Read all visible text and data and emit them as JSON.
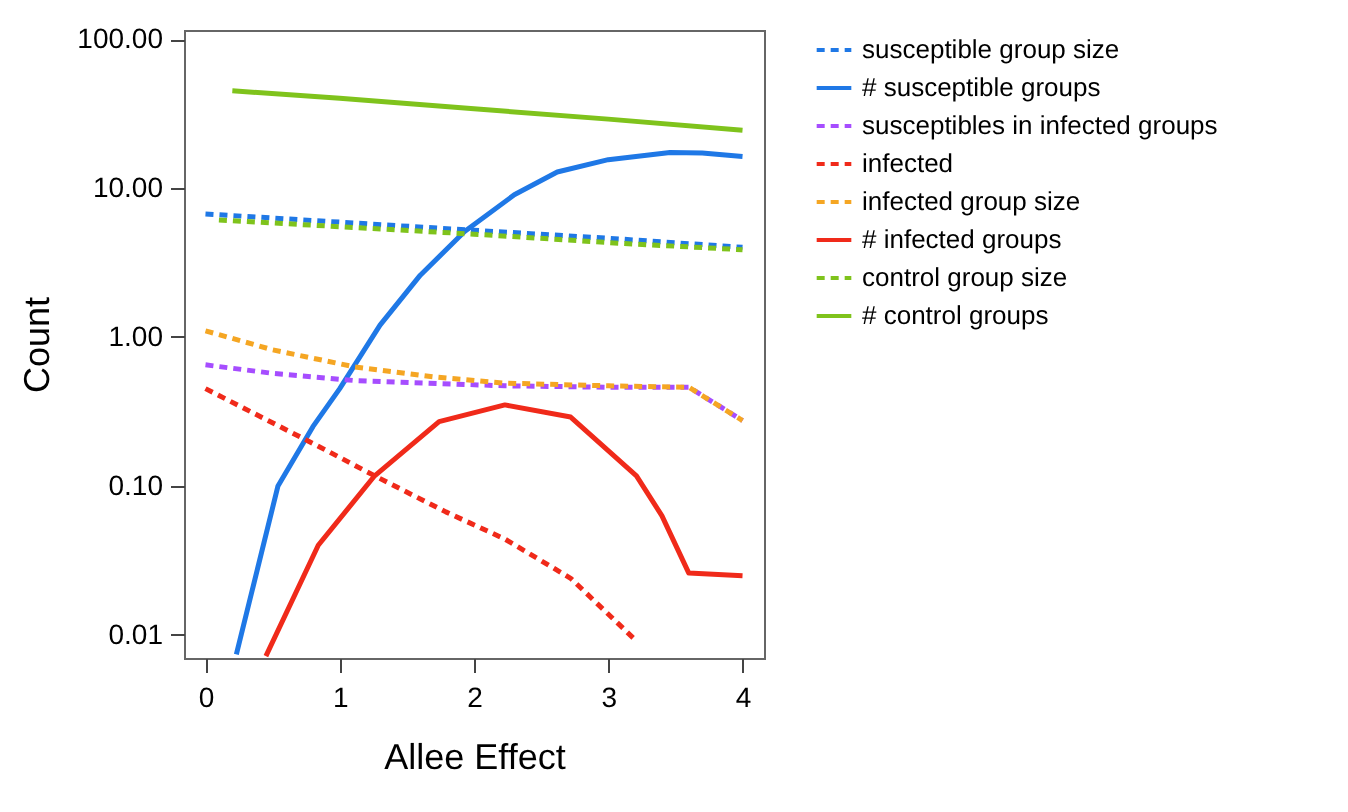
{
  "chart_data": {
    "type": "line",
    "xlabel": "Allee Effect",
    "ylabel": "Count",
    "log": "y",
    "grid": false,
    "legend": "right",
    "xlim": [
      -0.16,
      4.16
    ],
    "xticks": [
      0,
      1,
      2,
      3,
      4
    ],
    "ylim": [
      0.007,
      115
    ],
    "yticks": [
      {
        "value": 0.01,
        "label": "0.01"
      },
      {
        "value": 0.1,
        "label": "0.10"
      },
      {
        "value": 1,
        "label": "1.00"
      },
      {
        "value": 10,
        "label": "10.00"
      },
      {
        "value": 100,
        "label": "100.00"
      }
    ],
    "series": [
      {
        "name": "susceptible group size",
        "color": "#1f78e6",
        "line_style": "dashed",
        "x": [
          0,
          1,
          2,
          3,
          4
        ],
        "values": [
          6.7,
          5.9,
          5.2,
          4.6,
          4.0
        ]
      },
      {
        "name": "# susceptible groups",
        "color": "#1f78e6",
        "line_style": "solid",
        "x": [
          0.23,
          0.54,
          0.8,
          1.0,
          1.3,
          1.6,
          1.93,
          2.3,
          2.62,
          3.0,
          3.46,
          3.7,
          4.0
        ],
        "values": [
          0.0074,
          0.1,
          0.25,
          0.45,
          1.2,
          2.6,
          5.1,
          9,
          12.8,
          15.5,
          17.3,
          17.2,
          16.3
        ]
      },
      {
        "name": "susceptibles in infected groups",
        "color": "#a64dff",
        "line_style": "dashed",
        "x": [
          0,
          0.5,
          1.11,
          2.23,
          3.0,
          3.6,
          4.0
        ],
        "values": [
          0.65,
          0.57,
          0.51,
          0.47,
          0.46,
          0.46,
          0.275
        ]
      },
      {
        "name": "infected",
        "color": "#f02a1a",
        "line_style": "dashed",
        "x": [
          0,
          0.84,
          1.26,
          1.79,
          2.23,
          2.72,
          3.21
        ],
        "values": [
          0.45,
          0.185,
          0.117,
          0.067,
          0.044,
          0.024,
          0.0091
        ]
      },
      {
        "name": "infected group size",
        "color": "#f5a623",
        "line_style": "dashed",
        "x": [
          0,
          0.5,
          1.11,
          1.7,
          2.23,
          3.0,
          3.6,
          4.0
        ],
        "values": [
          1.1,
          0.82,
          0.63,
          0.54,
          0.49,
          0.47,
          0.46,
          0.275
        ]
      },
      {
        "name": "# infected groups",
        "color": "#f02a1a",
        "line_style": "solid",
        "x": [
          0.45,
          0.84,
          1.26,
          1.74,
          2.23,
          2.72,
          3.21,
          3.4,
          3.6,
          4.0
        ],
        "values": [
          0.0072,
          0.04,
          0.117,
          0.27,
          0.35,
          0.29,
          0.117,
          0.063,
          0.026,
          0.025
        ]
      },
      {
        "name": "control group size",
        "color": "#7fc31c",
        "line_style": "dashed",
        "x": [
          0.1,
          1,
          2,
          3,
          4
        ],
        "values": [
          6.1,
          5.5,
          4.9,
          4.3,
          3.85
        ]
      },
      {
        "name": "# control groups",
        "color": "#7fc31c",
        "line_style": "solid",
        "x": [
          0.2,
          1,
          2,
          3,
          4
        ],
        "values": [
          45,
          40,
          34,
          29,
          24.4
        ]
      }
    ]
  }
}
